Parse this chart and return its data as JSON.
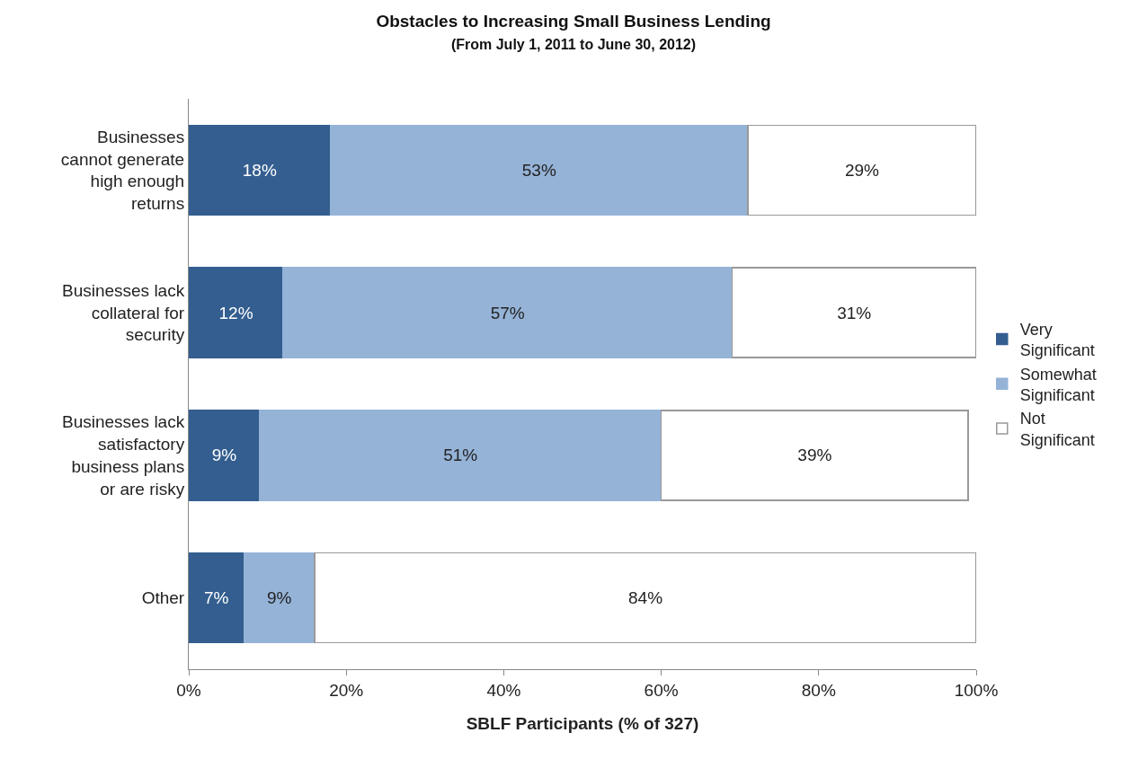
{
  "chart_data": {
    "type": "bar",
    "title": "Obstacles to Increasing Small Business Lending",
    "subtitle": "(From July 1, 2011 to June 30, 2012)",
    "xlabel": "SBLF Participants (% of 327)",
    "orientation": "horizontal",
    "stacked": true,
    "grid": false,
    "legend": "right",
    "categories": [
      "Businesses cannot generate high enough returns",
      "Businesses lack collateral for security",
      "Businesses lack satisfactory business plans or are risky",
      "Other"
    ],
    "series": [
      {
        "name": "Very Significant",
        "color": "#335e8f",
        "values": [
          18,
          12,
          9,
          7
        ],
        "value_labels": [
          "18%",
          "12%",
          "9%",
          "7%"
        ]
      },
      {
        "name": "Somewhat Significant",
        "color": "#95b3d7",
        "values": [
          53,
          57,
          51,
          9
        ],
        "value_labels": [
          "53%",
          "57%",
          "51%",
          "9%"
        ]
      },
      {
        "name": "Not Significant",
        "color": "#ffffff",
        "values": [
          29,
          31,
          39,
          84
        ],
        "value_labels": [
          "29%",
          "31%",
          "39%",
          "84%"
        ]
      }
    ],
    "xlim": [
      0,
      100
    ],
    "xticks": [
      {
        "value": 0,
        "label": "0%"
      },
      {
        "value": 20,
        "label": "20%"
      },
      {
        "value": 40,
        "label": "40%"
      },
      {
        "value": 60,
        "label": "60%"
      },
      {
        "value": 80,
        "label": "80%"
      },
      {
        "value": 100,
        "label": "100%"
      }
    ]
  }
}
